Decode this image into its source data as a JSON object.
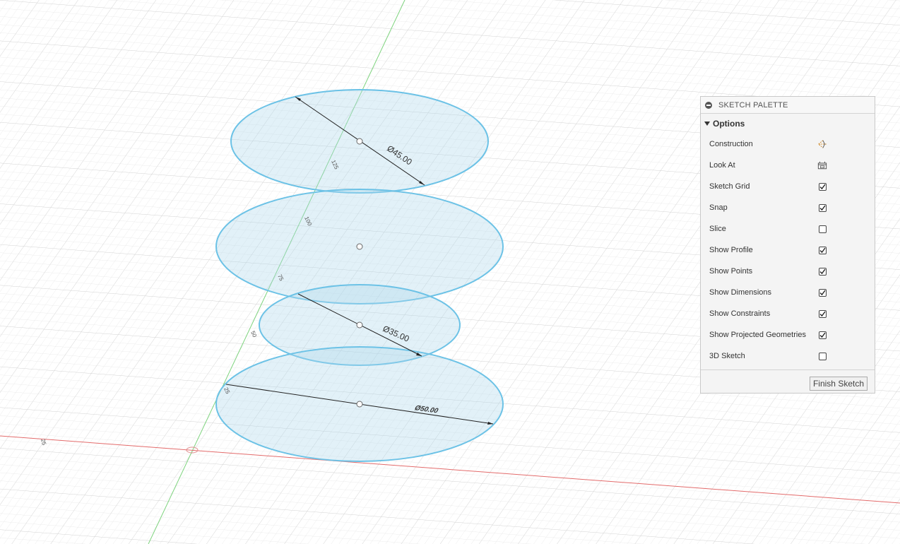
{
  "viewport": {
    "dimensions": {
      "d_45": "Ø45.00",
      "d_35": "Ø35.00",
      "d_50": "Ø50.00"
    },
    "axis_labels": {
      "green_1": "125",
      "green_2": "100",
      "green_3": "75",
      "green_4": "50",
      "green_5": "25",
      "red_1": "25"
    }
  },
  "palette": {
    "title": "SKETCH PALETTE",
    "section": "Options",
    "options": [
      {
        "label": "Construction",
        "control": "construction-icon"
      },
      {
        "label": "Look At",
        "control": "look-at-icon"
      },
      {
        "label": "Sketch Grid",
        "control": "checkbox",
        "checked": true
      },
      {
        "label": "Snap",
        "control": "checkbox",
        "checked": true
      },
      {
        "label": "Slice",
        "control": "checkbox",
        "checked": false
      },
      {
        "label": "Show Profile",
        "control": "checkbox",
        "checked": true
      },
      {
        "label": "Show Points",
        "control": "checkbox",
        "checked": true
      },
      {
        "label": "Show Dimensions",
        "control": "checkbox",
        "checked": true
      },
      {
        "label": "Show Constraints",
        "control": "checkbox",
        "checked": true
      },
      {
        "label": "Show Projected Geometries",
        "control": "checkbox",
        "checked": true
      },
      {
        "label": "3D Sketch",
        "control": "checkbox",
        "checked": false
      }
    ],
    "finish_label": "Finish Sketch"
  }
}
